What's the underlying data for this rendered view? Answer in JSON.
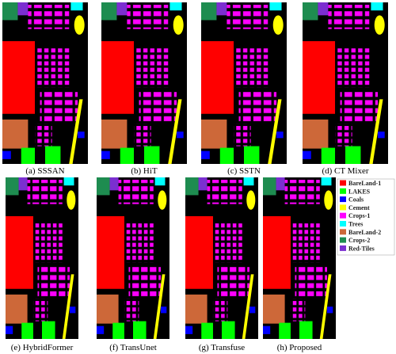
{
  "panels": [
    {
      "caption": "(a) SSSAN"
    },
    {
      "caption": "(b) HiT"
    },
    {
      "caption": "(c) SSTN"
    },
    {
      "caption": "(d) CT Mixer"
    },
    {
      "caption": "(e) HybridFormer"
    },
    {
      "caption": "(f) TransUnet"
    },
    {
      "caption": "(g) Transfuse"
    },
    {
      "caption": "(h) Proposed"
    }
  ],
  "legend": [
    {
      "label": "BareLand-1",
      "color": "#ff0000"
    },
    {
      "label": "LAKES",
      "color": "#00ff00"
    },
    {
      "label": "Coals",
      "color": "#0000ff"
    },
    {
      "label": "Cement",
      "color": "#ffff00"
    },
    {
      "label": "Crops-1",
      "color": "#ff00ff"
    },
    {
      "label": "Trees",
      "color": "#00ffff"
    },
    {
      "label": "BareLand-2",
      "color": "#cd6839"
    },
    {
      "label": "Crops-2",
      "color": "#1e8c50"
    },
    {
      "label": "Red-Tiles",
      "color": "#7b2fd0"
    }
  ]
}
